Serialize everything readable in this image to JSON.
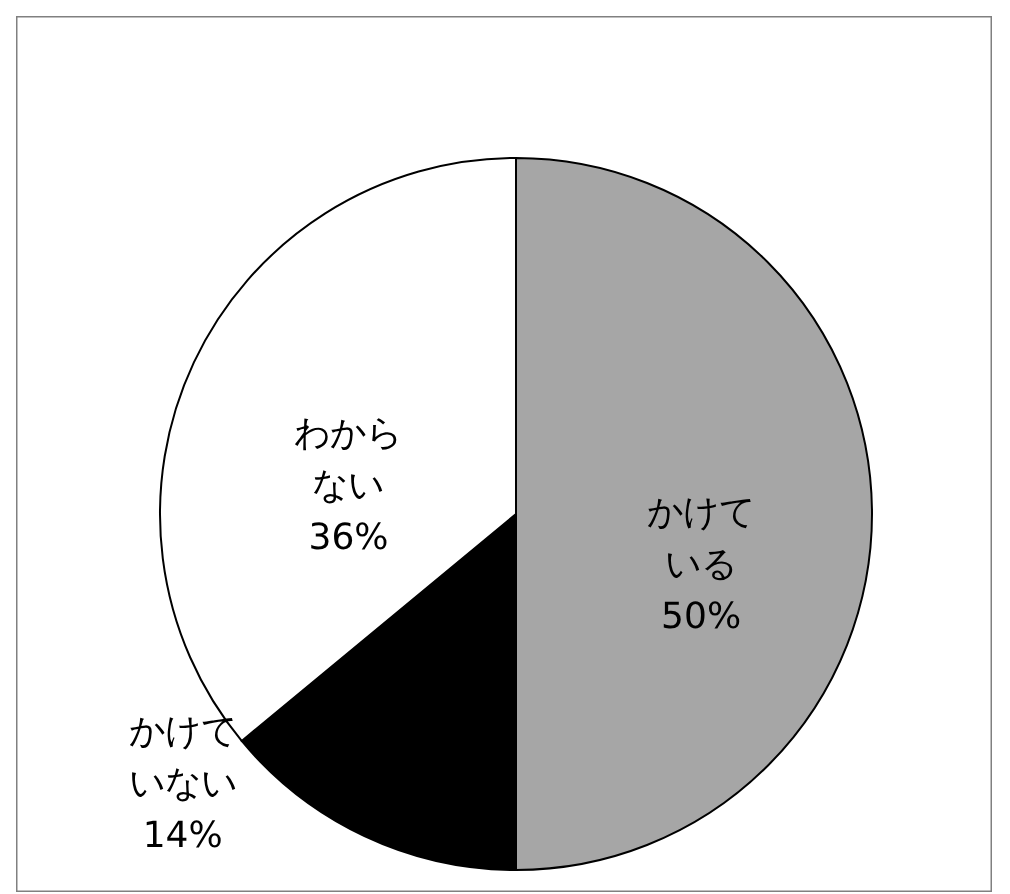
{
  "chart_data": {
    "type": "pie",
    "categories": [
      "かけている",
      "かけていない",
      "わからない"
    ],
    "values": [
      50,
      14,
      36
    ],
    "value_labels": [
      "50%",
      "14%",
      "36%"
    ],
    "colors": [
      "#a6a6a6",
      "#000000",
      "#ffffff"
    ]
  }
}
